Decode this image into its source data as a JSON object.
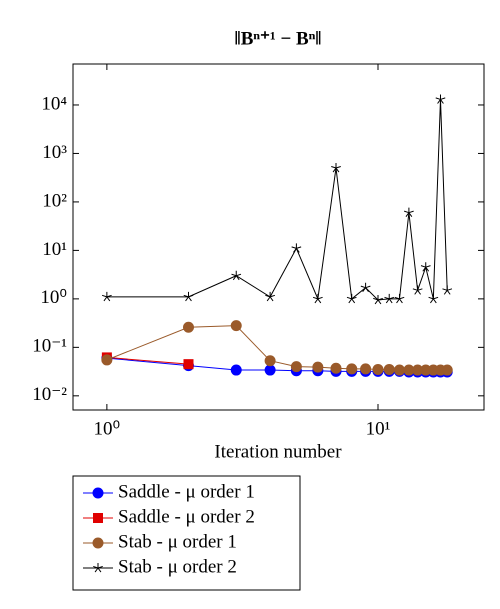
{
  "chart_data": {
    "type": "line",
    "title": "‖Bⁿ⁺¹ − Bⁿ‖",
    "x_label": "Iteration number",
    "xlog": true,
    "ylog": true,
    "x": [
      1,
      2,
      3,
      4,
      5,
      6,
      7,
      8,
      9,
      10,
      11,
      12,
      13,
      14,
      15,
      16,
      17,
      18
    ],
    "xlim": [
      0.75,
      24.6
    ],
    "ylim": [
      0.0051,
      70000
    ],
    "xticks": [
      {
        "value": 1,
        "label": "10⁰"
      },
      {
        "value": 10,
        "label": "10¹"
      }
    ],
    "yticks": [
      {
        "value": 0.01,
        "label": "10⁻²"
      },
      {
        "value": 0.1,
        "label": "10⁻¹"
      },
      {
        "value": 1,
        "label": "10⁰"
      },
      {
        "value": 10,
        "label": "10¹"
      },
      {
        "value": 100,
        "label": "10²"
      },
      {
        "value": 1000,
        "label": "10³"
      },
      {
        "value": 10000,
        "label": "10⁴"
      }
    ],
    "legend": "below-left",
    "series": [
      {
        "name": "Saddle - μ order 1",
        "color": "#0000ff",
        "marker": "circle",
        "values": [
          0.06,
          0.042,
          0.034,
          0.034,
          0.033,
          0.033,
          0.032,
          0.032,
          0.032,
          0.032,
          0.032,
          0.032,
          0.031,
          0.031,
          0.031,
          0.031,
          0.031,
          0.031
        ]
      },
      {
        "name": "Saddle - μ order 2",
        "color": "#e00000",
        "marker": "square",
        "values": [
          0.062,
          0.045,
          null,
          null,
          null,
          null,
          null,
          null,
          null,
          null,
          null,
          null,
          null,
          null,
          null,
          null,
          null,
          null
        ]
      },
      {
        "name": "Stab - μ order 1",
        "color": "#9a5a2a",
        "marker": "circle",
        "values": [
          0.055,
          0.26,
          0.28,
          0.053,
          0.04,
          0.039,
          0.037,
          0.036,
          0.036,
          0.035,
          0.035,
          0.034,
          0.034,
          0.034,
          0.034,
          0.034,
          0.034,
          0.034
        ]
      },
      {
        "name": "Stab - μ order 2",
        "color": "#000000",
        "marker": "star",
        "values": [
          1.1,
          1.1,
          3,
          1.1,
          11,
          1.0,
          500,
          1.0,
          1.7,
          0.95,
          1.0,
          1.0,
          60,
          1.5,
          4.5,
          1.0,
          13000,
          1.5
        ]
      }
    ]
  }
}
